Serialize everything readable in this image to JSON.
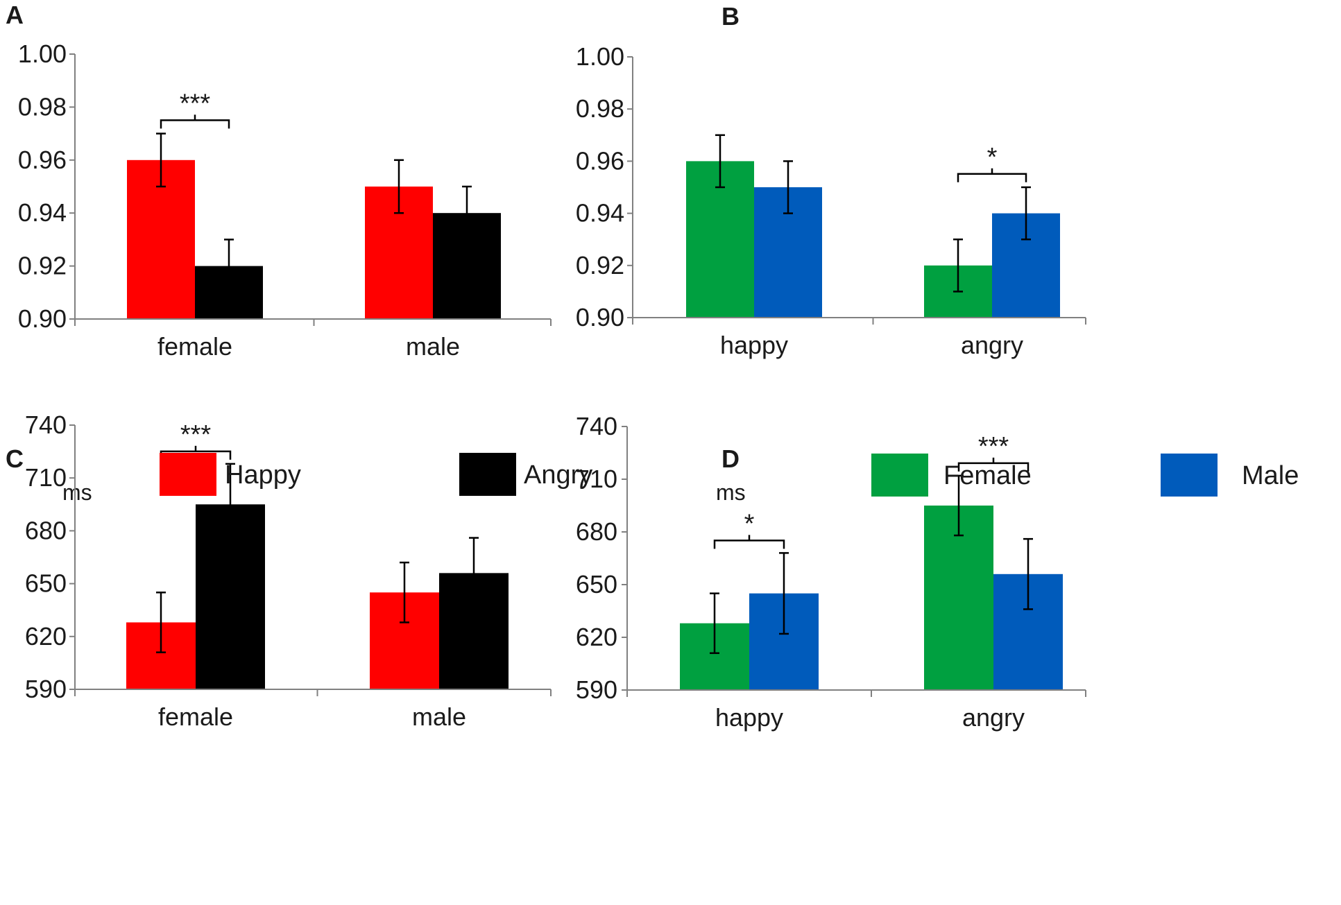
{
  "chart_data": [
    {
      "panel": "A",
      "type": "bar",
      "categories": [
        "female",
        "male"
      ],
      "series": [
        {
          "name": "Happy",
          "color": "#ff0000",
          "values": [
            0.96,
            0.95
          ],
          "errors": [
            0.01,
            0.01
          ]
        },
        {
          "name": "Angry",
          "color": "#000000",
          "values": [
            0.92,
            0.94
          ],
          "errors": [
            0.01,
            0.01
          ]
        }
      ],
      "ylim": [
        0.9,
        1.0
      ],
      "yticks": [
        "1.00",
        "0.98",
        "0.96",
        "0.94",
        "0.92",
        "0.90"
      ],
      "ytick_values": [
        1.0,
        0.98,
        0.96,
        0.94,
        0.92,
        0.9
      ],
      "ylabel": "",
      "significance": [
        {
          "category": 0,
          "label": "***"
        }
      ]
    },
    {
      "panel": "B",
      "type": "bar",
      "categories": [
        "happy",
        "angry"
      ],
      "series": [
        {
          "name": "Female",
          "color": "#00a040",
          "values": [
            0.96,
            0.92
          ],
          "errors": [
            0.01,
            0.01
          ]
        },
        {
          "name": "Male",
          "color": "#005bbb",
          "values": [
            0.95,
            0.94
          ],
          "errors": [
            0.01,
            0.01
          ]
        }
      ],
      "ylim": [
        0.9,
        1.0
      ],
      "yticks": [
        "1.00",
        "0.98",
        "0.96",
        "0.94",
        "0.92",
        "0.90"
      ],
      "ytick_values": [
        1.0,
        0.98,
        0.96,
        0.94,
        0.92,
        0.9
      ],
      "ylabel": "",
      "significance": [
        {
          "category": 1,
          "label": "*"
        }
      ]
    },
    {
      "panel": "C",
      "type": "bar",
      "categories": [
        "female",
        "male"
      ],
      "series": [
        {
          "name": "Happy",
          "color": "#ff0000",
          "values": [
            628,
            645
          ],
          "errors": [
            17,
            17
          ]
        },
        {
          "name": "Angry",
          "color": "#000000",
          "values": [
            695,
            656
          ],
          "errors": [
            23,
            20
          ]
        }
      ],
      "ylim": [
        590,
        740
      ],
      "yticks": [
        "740",
        "710",
        "680",
        "650",
        "620",
        "590"
      ],
      "ytick_values": [
        740,
        710,
        680,
        650,
        620,
        590
      ],
      "ylabel": "ms",
      "significance": [
        {
          "category": 0,
          "label": "***"
        }
      ]
    },
    {
      "panel": "D",
      "type": "bar",
      "categories": [
        "happy",
        "angry"
      ],
      "series": [
        {
          "name": "Female",
          "color": "#00a040",
          "values": [
            628,
            695
          ],
          "errors": [
            17,
            17
          ]
        },
        {
          "name": "Male",
          "color": "#005bbb",
          "values": [
            645,
            656
          ],
          "errors": [
            23,
            20
          ]
        }
      ],
      "ylim": [
        590,
        740
      ],
      "yticks": [
        "740",
        "710",
        "680",
        "650",
        "620",
        "590"
      ],
      "ytick_values": [
        740,
        710,
        680,
        650,
        620,
        590
      ],
      "ylabel": "ms",
      "significance": [
        {
          "category": 0,
          "label": "*"
        },
        {
          "category": 1,
          "label": "***"
        }
      ]
    }
  ],
  "legends": [
    {
      "entries": [
        {
          "label": "Happy",
          "color": "#ff0000"
        },
        {
          "label": "Angry",
          "color": "#000000"
        }
      ]
    },
    {
      "entries": [
        {
          "label": "Female",
          "color": "#00a040"
        },
        {
          "label": "Male",
          "color": "#005bbb"
        }
      ]
    }
  ]
}
